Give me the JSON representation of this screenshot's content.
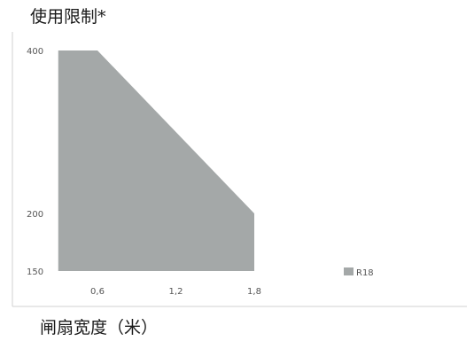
{
  "chart_data": {
    "type": "area",
    "title": "",
    "ylabel": "使用限制*",
    "xlabel": "闸扇宽度（米）",
    "x_ticks": [
      "0,6",
      "1,2",
      "1,8"
    ],
    "y_ticks": [
      "400",
      "200",
      "150"
    ],
    "x_tick_values": [
      0.6,
      1.2,
      1.8
    ],
    "y_tick_values": [
      400,
      200,
      150
    ],
    "xlim": [
      0,
      1.8
    ],
    "ylim": [
      150,
      400
    ],
    "grid": false,
    "legend_position": "right",
    "series": [
      {
        "name": "R18",
        "color": "#a4a8a8",
        "points": [
          {
            "x": 0.3,
            "y": 150
          },
          {
            "x": 0.3,
            "y": 400
          },
          {
            "x": 0.6,
            "y": 400
          },
          {
            "x": 1.8,
            "y": 200
          },
          {
            "x": 1.8,
            "y": 150
          }
        ]
      }
    ]
  }
}
